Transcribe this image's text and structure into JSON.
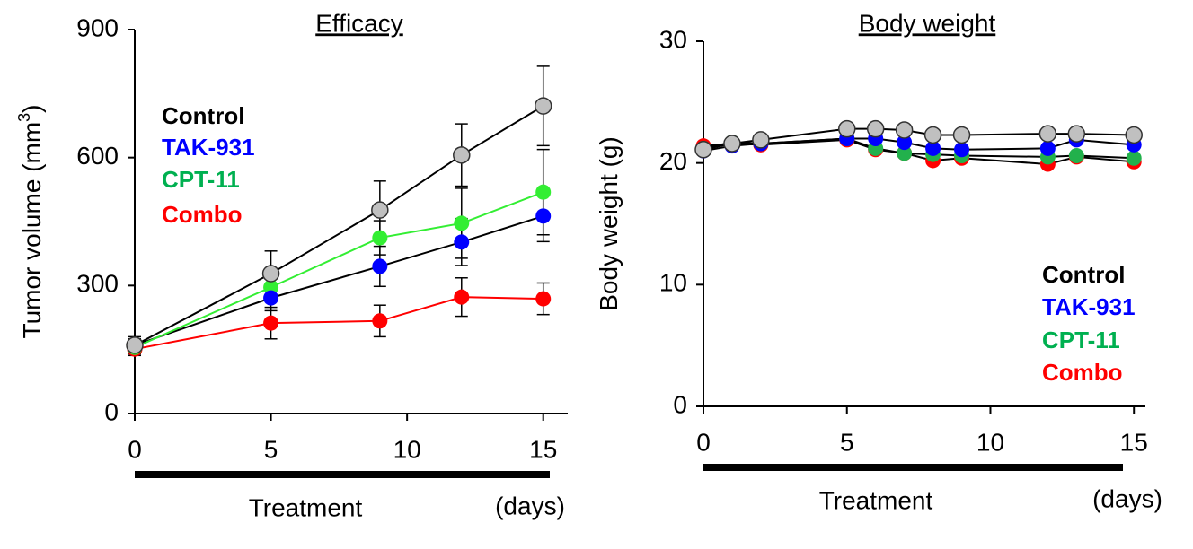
{
  "chart_data": [
    {
      "type": "line",
      "title": "Efficacy",
      "y_label": "Tumor volume (mm",
      "y_label_sup": "3",
      "y_label_end": ")",
      "treatment_label": "Treatment",
      "x_unit_label": "(days)",
      "x": [
        0,
        5,
        9,
        12,
        15
      ],
      "xlim": [
        0,
        15.9
      ],
      "xticks": [
        0,
        5,
        10,
        15
      ],
      "ylim": [
        0,
        900
      ],
      "yticks": [
        0,
        300,
        600,
        900
      ],
      "series": [
        {
          "name": "Control",
          "color": "#c0c0c0",
          "legend_color": "#000000",
          "line_color": "#000000",
          "values": [
            160,
            328,
            477,
            606,
            721
          ],
          "errors": [
            20,
            53,
            68,
            73,
            93
          ]
        },
        {
          "name": "TAK-931",
          "color": "#0000ff",
          "legend_color": "#0000ff",
          "line_color": "#000000",
          "values": [
            160,
            271,
            345,
            402,
            463
          ],
          "errors": [
            15,
            30,
            47,
            55,
            60
          ]
        },
        {
          "name": "CPT-11",
          "color": "#33ee33",
          "legend_color": "#00b050",
          "line_color": "#33ee33",
          "values": [
            155,
            296,
            412,
            446,
            519
          ],
          "errors": [
            15,
            30,
            40,
            82,
            100
          ]
        },
        {
          "name": "Combo",
          "color": "#ff0000",
          "legend_color": "#ff0000",
          "line_color": "#ff0000",
          "values": [
            151,
            212,
            217,
            273,
            269
          ],
          "errors": [
            15,
            37,
            37,
            45,
            37
          ]
        }
      ]
    },
    {
      "type": "line",
      "title": "Body weight",
      "y_label": "Body weight  (g)",
      "treatment_label": "Treatment",
      "x_unit_label": "(days)",
      "x": [
        0,
        1,
        2,
        5,
        6,
        7,
        8,
        9,
        12,
        13,
        15
      ],
      "xlim": [
        0,
        15.4
      ],
      "xticks": [
        0,
        5,
        10,
        15
      ],
      "ylim": [
        0,
        30
      ],
      "yticks": [
        0,
        10,
        20,
        30
      ],
      "series": [
        {
          "name": "Control",
          "color": "#c0c0c0",
          "legend_color": "#000000",
          "line_color": "#000000",
          "values": [
            21.1,
            21.6,
            21.9,
            22.8,
            22.8,
            22.7,
            22.3,
            22.3,
            22.4,
            22.4,
            22.3
          ]
        },
        {
          "name": "TAK-931",
          "color": "#0000ff",
          "legend_color": "#0000ff",
          "line_color": "#000000",
          "values": [
            21.0,
            21.4,
            21.6,
            22.0,
            22.0,
            21.7,
            21.2,
            21.1,
            21.2,
            21.9,
            21.5
          ]
        },
        {
          "name": "CPT-11",
          "color": "#22b14c",
          "legend_color": "#00b050",
          "line_color": "#000000",
          "values": [
            21.2,
            21.7,
            21.6,
            22.0,
            21.2,
            20.8,
            20.7,
            20.6,
            20.5,
            20.6,
            20.4
          ]
        },
        {
          "name": "Combo",
          "color": "#ff0000",
          "legend_color": "#ff0000",
          "line_color": "#000000",
          "values": [
            21.4,
            21.6,
            21.5,
            21.9,
            21.1,
            20.8,
            20.2,
            20.4,
            19.9,
            20.5,
            20.1
          ]
        }
      ]
    }
  ]
}
